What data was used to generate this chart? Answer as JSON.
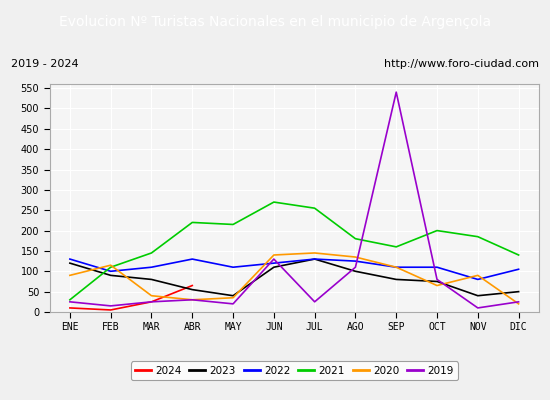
{
  "title": "Evolucion Nº Turistas Nacionales en el municipio de Argençola",
  "subtitle_left": "2019 - 2024",
  "subtitle_right": "http://www.foro-ciudad.com",
  "title_bg_color": "#4472c4",
  "title_text_color": "#ffffff",
  "months": [
    "ENE",
    "FEB",
    "MAR",
    "ABR",
    "MAY",
    "JUN",
    "JUL",
    "AGO",
    "SEP",
    "OCT",
    "NOV",
    "DIC"
  ],
  "ylim": [
    0,
    560
  ],
  "yticks": [
    0,
    50,
    100,
    150,
    200,
    250,
    300,
    350,
    400,
    450,
    500,
    550
  ],
  "series": {
    "2024": {
      "color": "#ff0000",
      "values": [
        10,
        5,
        25,
        65,
        null,
        null,
        null,
        null,
        null,
        null,
        null,
        null
      ]
    },
    "2023": {
      "color": "#000000",
      "values": [
        120,
        90,
        80,
        55,
        40,
        110,
        130,
        100,
        80,
        75,
        40,
        50
      ]
    },
    "2022": {
      "color": "#0000ff",
      "values": [
        130,
        100,
        110,
        130,
        110,
        120,
        130,
        125,
        110,
        110,
        80,
        105
      ]
    },
    "2021": {
      "color": "#00cc00",
      "values": [
        30,
        110,
        145,
        220,
        215,
        270,
        255,
        180,
        160,
        200,
        185,
        140
      ]
    },
    "2020": {
      "color": "#ff9900",
      "values": [
        90,
        115,
        40,
        30,
        35,
        140,
        145,
        135,
        110,
        65,
        90,
        20
      ]
    },
    "2019": {
      "color": "#9900cc",
      "values": [
        25,
        15,
        25,
        30,
        20,
        130,
        25,
        110,
        540,
        80,
        10,
        25
      ]
    }
  },
  "legend_order": [
    "2024",
    "2023",
    "2022",
    "2021",
    "2020",
    "2019"
  ],
  "bg_color": "#f0f0f0",
  "plot_bg_color": "#f5f5f5",
  "grid_color": "#ffffff"
}
